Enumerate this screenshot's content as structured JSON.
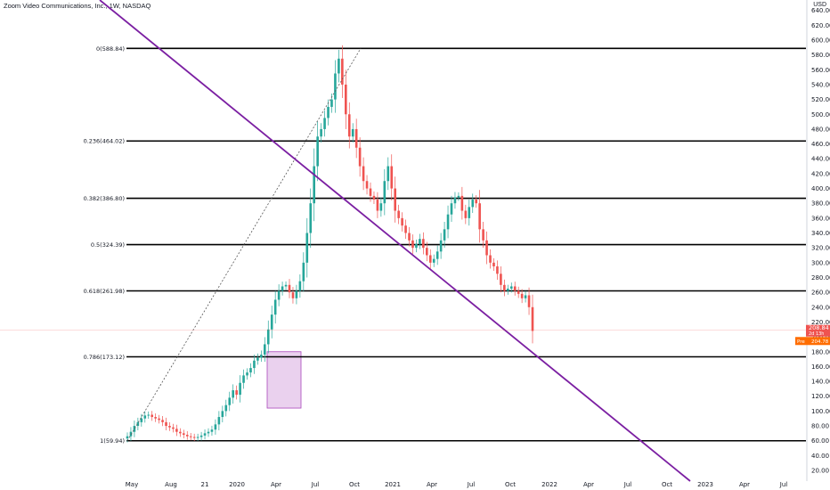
{
  "header": {
    "title": "Zoom Video Communications, Inc., 1W, NASDAQ",
    "currency": "USD"
  },
  "colors": {
    "up": "#26a69a",
    "down": "#ef5350",
    "trendline": "#7b1fa2",
    "fib_line": "#000000",
    "box_fill": "#e1bee7",
    "box_stroke": "#ab47bc",
    "price_badge": "#ef5350",
    "pre_badge": "#ff6d00"
  },
  "chart_data": {
    "type": "candlestick",
    "title": "Zoom Video Communications, Inc., 1W, NASDAQ",
    "ylim": [
      0,
      650
    ],
    "y_ticks": [
      640,
      620,
      600,
      580,
      560,
      540,
      520,
      500,
      480,
      460,
      440,
      420,
      400,
      380,
      360,
      340,
      320,
      300,
      280,
      260,
      240,
      220,
      200,
      180,
      160,
      140,
      120,
      100,
      80,
      60,
      40,
      20
    ],
    "x_ticks": [
      "May",
      "Aug",
      "21",
      "2020",
      "Apr",
      "Jul",
      "Oct",
      "2021",
      "Apr",
      "Jul",
      "Oct",
      "2022",
      "Apr",
      "Jul",
      "Oct",
      "2023",
      "Apr",
      "Jul"
    ],
    "fib_levels": [
      {
        "label": "0(588.84)",
        "value": 588.84
      },
      {
        "label": "0.236(464.02)",
        "value": 464.02
      },
      {
        "label": "0.382(386.80)",
        "value": 386.8
      },
      {
        "label": "0.5(324.39)",
        "value": 324.39
      },
      {
        "label": "0.618(261.98)",
        "value": 261.98
      },
      {
        "label": "0.786(173.12)",
        "value": 173.12
      },
      {
        "label": "1(59.94)",
        "value": 59.94
      }
    ],
    "price_badges": [
      {
        "label": "208.84",
        "sub": "2d 13h"
      },
      {
        "label": "Pre",
        "value": "204.78"
      }
    ],
    "close_series": [
      66,
      72,
      80,
      85,
      90,
      94,
      95,
      92,
      90,
      88,
      85,
      80,
      78,
      76,
      72,
      70,
      68,
      66,
      65,
      64,
      65,
      67,
      70,
      72,
      75,
      82,
      92,
      100,
      108,
      118,
      128,
      122,
      138,
      148,
      152,
      158,
      168,
      172,
      176,
      190,
      210,
      230,
      250,
      262,
      268,
      270,
      260,
      252,
      262,
      275,
      300,
      340,
      380,
      430,
      470,
      480,
      495,
      510,
      520,
      555,
      575,
      540,
      500,
      470,
      480,
      455,
      430,
      410,
      400,
      390,
      385,
      370,
      380,
      410,
      430,
      400,
      370,
      360,
      350,
      340,
      330,
      320,
      325,
      332,
      320,
      310,
      300,
      305,
      315,
      330,
      345,
      365,
      380,
      388,
      390,
      370,
      360,
      375,
      385,
      380,
      345,
      330,
      310,
      300,
      295,
      285,
      270,
      262,
      265,
      268,
      262,
      258,
      252,
      256,
      240,
      208
    ]
  }
}
